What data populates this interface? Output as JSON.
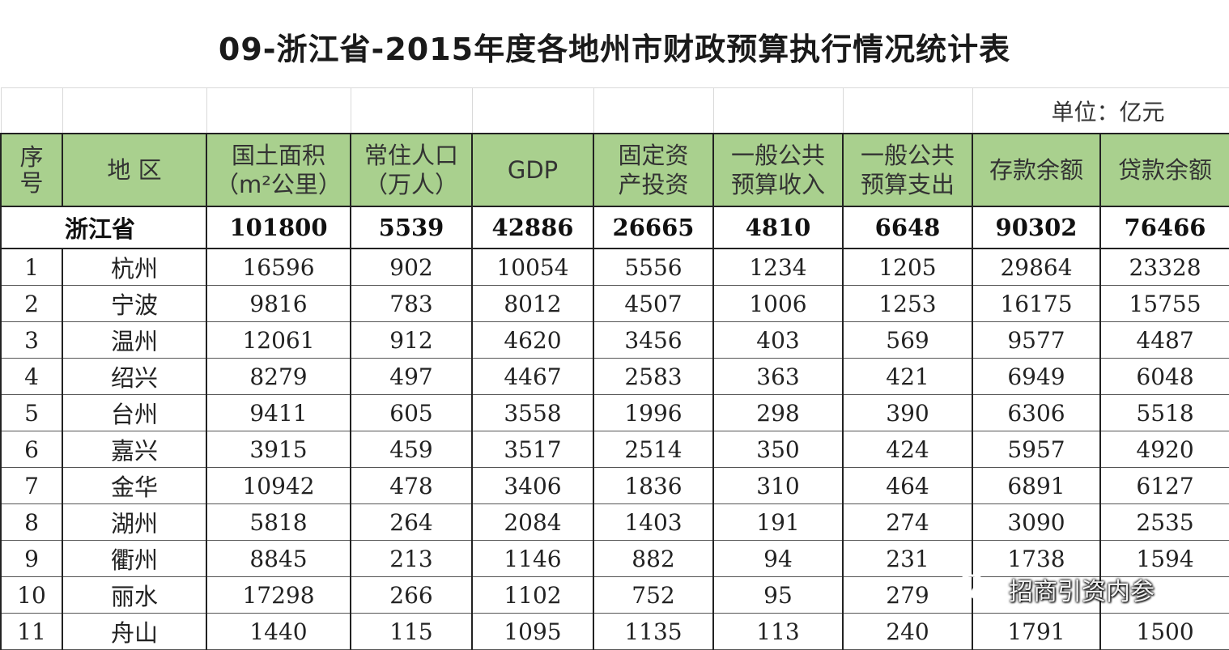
{
  "title": "09-浙江省-2015年度各地州市财政预算执行情况统计表",
  "unit": "单位：亿元",
  "headers": {
    "seq_line1": "序",
    "seq_line2": "号",
    "region": "地 区",
    "area_line1": "国土面积",
    "area_line2": "（m²公里）",
    "pop_line1": "常住人口",
    "pop_line2": "（万人）",
    "gdp": "GDP",
    "inv_line1": "固定资",
    "inv_line2": "产投资",
    "rev_line1": "一般公共",
    "rev_line2": "预算收入",
    "exp_line1": "一般公共",
    "exp_line2": "预算支出",
    "deposit": "存款余额",
    "loan": "贷款余额"
  },
  "total": {
    "name": "浙江省",
    "area": "101800",
    "population": "5539",
    "gdp": "42886",
    "investment": "26665",
    "revenue": "4810",
    "expenditure": "6648",
    "deposit": "90302",
    "loan": "76466"
  },
  "rows": [
    {
      "seq": "1",
      "region": "杭州",
      "area": "16596",
      "population": "902",
      "gdp": "10054",
      "investment": "5556",
      "revenue": "1234",
      "expenditure": "1205",
      "deposit": "29864",
      "loan": "23328"
    },
    {
      "seq": "2",
      "region": "宁波",
      "area": "9816",
      "population": "783",
      "gdp": "8012",
      "investment": "4507",
      "revenue": "1006",
      "expenditure": "1253",
      "deposit": "16175",
      "loan": "15755"
    },
    {
      "seq": "3",
      "region": "温州",
      "area": "12061",
      "population": "912",
      "gdp": "4620",
      "investment": "3456",
      "revenue": "403",
      "expenditure": "569",
      "deposit": "9577",
      "loan": "4487"
    },
    {
      "seq": "4",
      "region": "绍兴",
      "area": "8279",
      "population": "497",
      "gdp": "4467",
      "investment": "2583",
      "revenue": "363",
      "expenditure": "421",
      "deposit": "6949",
      "loan": "6048"
    },
    {
      "seq": "5",
      "region": "台州",
      "area": "9411",
      "population": "605",
      "gdp": "3558",
      "investment": "1996",
      "revenue": "298",
      "expenditure": "390",
      "deposit": "6306",
      "loan": "5518"
    },
    {
      "seq": "6",
      "region": "嘉兴",
      "area": "3915",
      "population": "459",
      "gdp": "3517",
      "investment": "2514",
      "revenue": "350",
      "expenditure": "424",
      "deposit": "5957",
      "loan": "4920"
    },
    {
      "seq": "7",
      "region": "金华",
      "area": "10942",
      "population": "478",
      "gdp": "3406",
      "investment": "1836",
      "revenue": "310",
      "expenditure": "464",
      "deposit": "6891",
      "loan": "6127"
    },
    {
      "seq": "8",
      "region": "湖州",
      "area": "5818",
      "population": "264",
      "gdp": "2084",
      "investment": "1403",
      "revenue": "191",
      "expenditure": "274",
      "deposit": "3090",
      "loan": "2535"
    },
    {
      "seq": "9",
      "region": "衢州",
      "area": "8845",
      "population": "213",
      "gdp": "1146",
      "investment": "882",
      "revenue": "94",
      "expenditure": "231",
      "deposit": "1738",
      "loan": "1594"
    },
    {
      "seq": "10",
      "region": "丽水",
      "area": "17298",
      "population": "266",
      "gdp": "1102",
      "investment": "752",
      "revenue": "95",
      "expenditure": "279",
      "deposit": "",
      "loan": ""
    },
    {
      "seq": "11",
      "region": "舟山",
      "area": "1440",
      "population": "115",
      "gdp": "1095",
      "investment": "1135",
      "revenue": "113",
      "expenditure": "240",
      "deposit": "1791",
      "loan": "1500"
    }
  ],
  "watermark": "招商引资内参"
}
